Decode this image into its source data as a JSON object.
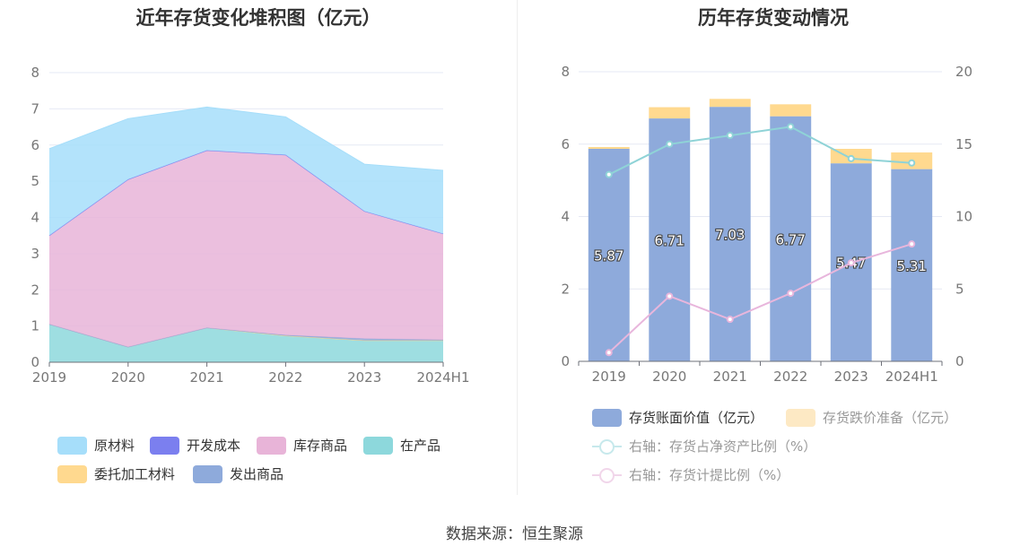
{
  "source": "数据来源：恒生聚源",
  "chart_data": [
    {
      "type": "area",
      "stacked": true,
      "title": "近年存货变化堆积图（亿元）",
      "categories": [
        "2019",
        "2020",
        "2021",
        "2022",
        "2023",
        "2024H1"
      ],
      "ylim": [
        0,
        8
      ],
      "yticks": [
        0,
        1,
        2,
        3,
        4,
        5,
        6,
        7,
        8
      ],
      "grid": true,
      "legend_position": "bottom",
      "series": [
        {
          "name": "在产品",
          "color": "#8dd8dc",
          "values": [
            1.05,
            0.42,
            0.95,
            0.73,
            0.6,
            0.6
          ]
        },
        {
          "name": "委托加工材料",
          "color": "#ffd98f",
          "values": [
            0,
            0,
            0,
            0,
            0,
            0
          ]
        },
        {
          "name": "发出商品",
          "color": "#8eaadb",
          "values": [
            0,
            0,
            0,
            0.02,
            0.05,
            0.02
          ]
        },
        {
          "name": "库存商品",
          "color": "#e8b4d8",
          "values": [
            2.45,
            4.63,
            4.9,
            4.98,
            3.52,
            2.93
          ]
        },
        {
          "name": "开发成本",
          "color": "#7b7fef",
          "values": [
            0,
            0,
            0,
            0,
            0,
            0
          ]
        },
        {
          "name": "原材料",
          "color": "#a6defa",
          "values": [
            2.4,
            1.68,
            1.2,
            1.05,
            1.3,
            1.75
          ]
        }
      ],
      "legend": [
        {
          "name": "原材料",
          "color": "#a6defa"
        },
        {
          "name": "开发成本",
          "color": "#7b7fef"
        },
        {
          "name": "库存商品",
          "color": "#e8b4d8"
        },
        {
          "name": "在产品",
          "color": "#8dd8dc"
        },
        {
          "name": "委托加工材料",
          "color": "#ffd98f"
        },
        {
          "name": "发出商品",
          "color": "#8eaadb"
        }
      ]
    },
    {
      "type": "bar",
      "stacked": true,
      "title": "历年存货变动情况",
      "categories": [
        "2019",
        "2020",
        "2021",
        "2022",
        "2023",
        "2024H1"
      ],
      "ylim": [
        0,
        8
      ],
      "yticks": [
        0,
        2,
        4,
        6,
        8
      ],
      "y2lim": [
        0,
        20
      ],
      "y2ticks": [
        0,
        5,
        10,
        15,
        20
      ],
      "grid": true,
      "legend_position": "bottom",
      "series": [
        {
          "name": "存货账面价值（亿元）",
          "color": "#8eaadb",
          "values": [
            5.87,
            6.71,
            7.03,
            6.77,
            5.47,
            5.31
          ],
          "labels": [
            "5.87",
            "6.71",
            "7.03",
            "6.77",
            "5.47",
            "5.31"
          ]
        },
        {
          "name": "存货跌价准备（亿元）",
          "color": "#ffd98f",
          "values": [
            0.05,
            0.31,
            0.22,
            0.33,
            0.4,
            0.46
          ]
        }
      ],
      "line_series": [
        {
          "name": "右轴：存货占净资产比例（%）",
          "color": "#8fd3d7",
          "axis": "right",
          "values": [
            12.9,
            15.0,
            15.6,
            16.2,
            14.0,
            13.7
          ]
        },
        {
          "name": "右轴：存货计提比例（%）",
          "color": "#e8b6dc",
          "axis": "right",
          "values": [
            0.6,
            4.5,
            2.9,
            4.7,
            6.8,
            8.1
          ]
        }
      ]
    }
  ]
}
